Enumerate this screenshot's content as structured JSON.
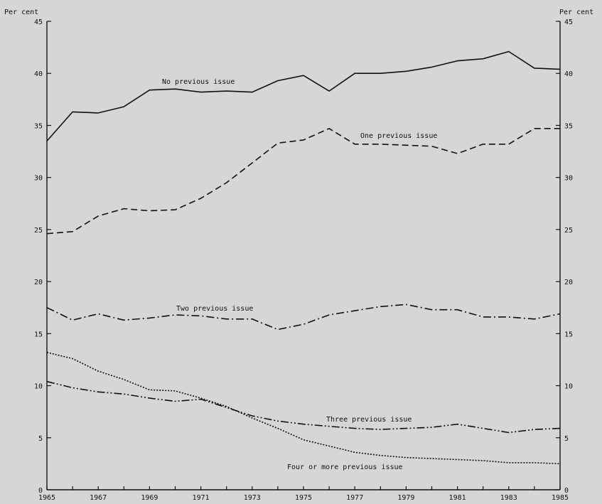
{
  "chart_data": {
    "type": "line",
    "y_unit_left": "Per cent",
    "y_unit_right": "Per cent",
    "ylim": [
      0,
      45
    ],
    "yticks": [
      0,
      5,
      10,
      15,
      20,
      25,
      30,
      35,
      40,
      45
    ],
    "xlim": [
      1965,
      1985
    ],
    "xtick_labels": [
      "1965",
      "1967",
      "1969",
      "1971",
      "1973",
      "1975",
      "1977",
      "1979",
      "1981",
      "1983",
      "1985"
    ],
    "x": [
      1965,
      1966,
      1967,
      1968,
      1969,
      1970,
      1971,
      1972,
      1973,
      1974,
      1975,
      1976,
      1977,
      1978,
      1979,
      1980,
      1981,
      1982,
      1983,
      1984,
      1985
    ],
    "grid": false,
    "legend": "inline labels",
    "series": [
      {
        "name": "No previous issue",
        "line_style": "solid",
        "values": [
          33.5,
          36.3,
          36.2,
          36.8,
          38.4,
          38.5,
          38.2,
          38.3,
          38.2,
          39.3,
          39.8,
          38.3,
          40.0,
          40.0,
          40.2,
          40.6,
          41.2,
          41.4,
          42.1,
          40.5,
          40.4
        ]
      },
      {
        "name": "One previous issue",
        "line_style": "dashed",
        "values": [
          24.6,
          24.8,
          26.3,
          27.0,
          26.8,
          26.9,
          28.0,
          29.5,
          31.4,
          33.3,
          33.6,
          34.7,
          33.2,
          33.2,
          33.1,
          33.0,
          32.3,
          33.2,
          33.2,
          34.7,
          34.7
        ]
      },
      {
        "name": "Two previous issue",
        "line_style": "dash-dot",
        "values": [
          17.5,
          16.3,
          16.9,
          16.3,
          16.5,
          16.8,
          16.7,
          16.4,
          16.4,
          15.4,
          15.9,
          16.8,
          17.2,
          17.6,
          17.8,
          17.3,
          17.3,
          16.6,
          16.6,
          16.4,
          16.9
        ]
      },
      {
        "name": "Three previous issue",
        "line_style": "dash-dot-dot",
        "values": [
          10.4,
          9.8,
          9.4,
          9.2,
          8.8,
          8.5,
          8.7,
          7.9,
          7.1,
          6.6,
          6.3,
          6.1,
          5.9,
          5.8,
          5.9,
          6.0,
          6.3,
          5.9,
          5.5,
          5.8,
          5.9
        ]
      },
      {
        "name": "Four or more previous issue",
        "line_style": "dotted",
        "values": [
          13.2,
          12.6,
          11.4,
          10.6,
          9.6,
          9.5,
          8.8,
          8.0,
          6.9,
          5.9,
          4.8,
          4.2,
          3.6,
          3.3,
          3.1,
          3.0,
          2.9,
          2.8,
          2.6,
          2.6,
          2.5
        ]
      }
    ]
  }
}
